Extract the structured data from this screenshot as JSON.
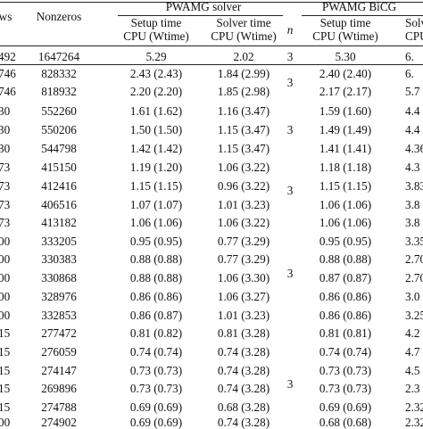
{
  "header": {
    "rows_label": "ws",
    "nonzeros_label": "Nonzeros",
    "group1_label": "PWAMG solver",
    "group2_label": "PWAMG BiCG",
    "setup_line1": "Setup time",
    "setup_line2": "CPU (Wtime)",
    "solver_line1": "Solver time",
    "solver_line2": "CPU (Wtime)",
    "n_label": "n",
    "setup2_line1": "Setup time",
    "setup2_line2": "CPU (Wtime)",
    "solver2_line1": "Solver",
    "solver2_line2": "CPU"
  },
  "rows": [
    {
      "rows": "492",
      "nonzeros": "1647264",
      "setup": "5.29",
      "solver": "2.02",
      "setup2": "5.30",
      "solver2": "6."
    },
    {
      "rows": "746",
      "nonzeros": "828332",
      "setup": "2.43 (2.43)",
      "solver": "1.84 (2.99)",
      "setup2": "2.40 (2.40)",
      "solver2": "6."
    },
    {
      "rows": "746",
      "nonzeros": "818932",
      "setup": "2.20 (2.20)",
      "solver": "1.85 (2.98)",
      "setup2": "2.17 (2.17)",
      "solver2": "5.7"
    },
    {
      "rows": "30",
      "nonzeros": "552260",
      "setup": "1.61 (1.62)",
      "solver": "1.16 (3.47)",
      "setup2": "1.59 (1.60)",
      "solver2": "4.4"
    },
    {
      "rows": "30",
      "nonzeros": "550206",
      "setup": "1.50 (1.50)",
      "solver": "1.15 (3.47)",
      "setup2": "1.49 (1.49)",
      "solver2": "4.4"
    },
    {
      "rows": "30",
      "nonzeros": "544798",
      "setup": "1.42 (1.42)",
      "solver": "1.15 (3.47)",
      "setup2": "1.41 (1.41)",
      "solver2": "4.36"
    },
    {
      "rows": "73",
      "nonzeros": "415150",
      "setup": "1.19 (1.20)",
      "solver": "1.06 (3.22)",
      "setup2": "1.18 (1.18)",
      "solver2": "4.3"
    },
    {
      "rows": "73",
      "nonzeros": "412416",
      "setup": "1.15 (1.15)",
      "solver": "0.96 (3.22)",
      "setup2": "1.15 (1.15)",
      "solver2": "3.83"
    },
    {
      "rows": "73",
      "nonzeros": "406516",
      "setup": "1.07 (1.07)",
      "solver": "1.01 (3.23)",
      "setup2": "1.06 (1.06)",
      "solver2": "3.8"
    },
    {
      "rows": "73",
      "nonzeros": "413182",
      "setup": "1.06 (1.06)",
      "solver": "1.06 (3.22)",
      "setup2": "1.06 (1.06)",
      "solver2": "3.8"
    },
    {
      "rows": "00",
      "nonzeros": "333205",
      "setup": "0.95 (0.95)",
      "solver": "0.77 (3.29)",
      "setup2": "0.95 (0.95)",
      "solver2": "3.35"
    },
    {
      "rows": "00",
      "nonzeros": "330383",
      "setup": "0.88 (0.88)",
      "solver": "0.77 (3.29)",
      "setup2": "0.88 (0.88)",
      "solver2": "2.70"
    },
    {
      "rows": "00",
      "nonzeros": "330868",
      "setup": "0.88 (0.88)",
      "solver": "1.06 (3.30)",
      "setup2": "0.87 (0.87)",
      "solver2": "2.70"
    },
    {
      "rows": "00",
      "nonzeros": "328976",
      "setup": "0.86 (0.86)",
      "solver": "1.06 (3.27)",
      "setup2": "0.86 (0.86)",
      "solver2": "3.0"
    },
    {
      "rows": "00",
      "nonzeros": "332853",
      "setup": "0.86 (0.87)",
      "solver": "1.01 (3.23)",
      "setup2": "0.86 (0.86)",
      "solver2": "3.25"
    },
    {
      "rows": "15",
      "nonzeros": "277472",
      "setup": "0.81 (0.82)",
      "solver": "0.81 (3.28)",
      "setup2": "0.81 (0.81)",
      "solver2": "4.2"
    },
    {
      "rows": "15",
      "nonzeros": "276059",
      "setup": "0.74 (0.74)",
      "solver": "0.74 (3.28)",
      "setup2": "0.74 (0.74)",
      "solver2": "4.7"
    },
    {
      "rows": "15",
      "nonzeros": "274147",
      "setup": "0.73 (0.73)",
      "solver": "0.74 (3.28)",
      "setup2": "0.73 (0.73)",
      "solver2": "4.5"
    },
    {
      "rows": "15",
      "nonzeros": "269896",
      "setup": "0.73 (0.73)",
      "solver": "0.74 (3.28)",
      "setup2": "0.73 (0.73)",
      "solver2": "2.3"
    },
    {
      "rows": "15",
      "nonzeros": "274788",
      "setup": "0.69 (0.69)",
      "solver": "0.68 (3.28)",
      "setup2": "0.69 (0.69)",
      "solver2": "2.32"
    },
    {
      "rows": "00",
      "nonzeros": "274902",
      "setup": "0.69 (0.69)",
      "solver": "0.74 (3.28)",
      "setup2": "0.68 (0.68)",
      "solver2": "2.32"
    }
  ],
  "n_values": [
    {
      "value": "3"
    },
    {
      "value": "3"
    },
    {
      "value": "3"
    },
    {
      "value": "3"
    },
    {
      "value": "3"
    },
    {
      "value": "3"
    }
  ]
}
